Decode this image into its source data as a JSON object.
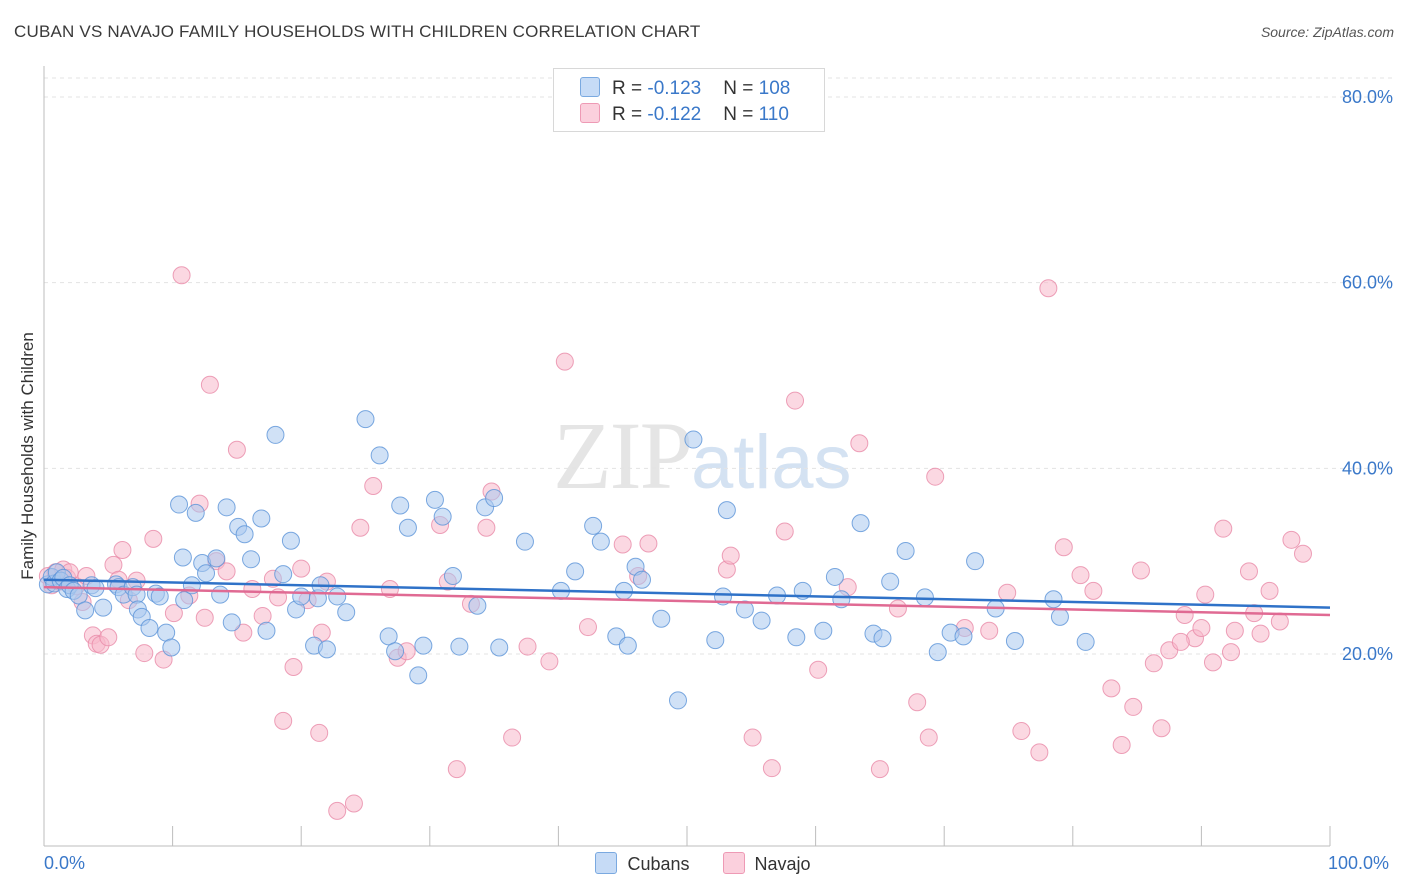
{
  "header": {
    "title": "CUBAN VS NAVAJO FAMILY HOUSEHOLDS WITH CHILDREN CORRELATION CHART",
    "source": "Source: ZipAtlas.com"
  },
  "watermark": {
    "zip": "ZIP",
    "atlas": "atlas"
  },
  "legend": {
    "rows": [
      {
        "r_label": "R = ",
        "r_value": "-0.123",
        "n_label": "N = ",
        "n_value": "108",
        "color": "#a9c8ef"
      },
      {
        "r_label": "R = ",
        "r_value": "-0.122",
        "n_label": "N = ",
        "n_value": "110",
        "color": "#f7b8cb"
      }
    ]
  },
  "bottom_legend": {
    "cubans": "Cubans",
    "navajo": "Navajo"
  },
  "axes": {
    "x_min_label": "0.0%",
    "x_max_label": "100.0%"
  },
  "chart_data": {
    "type": "scatter",
    "title": "CUBAN VS NAVAJO FAMILY HOUSEHOLDS WITH CHILDREN CORRELATION CHART",
    "xlabel": "",
    "ylabel": "Family Households with Children",
    "xlim": [
      0,
      100
    ],
    "ylim": [
      0,
      84
    ],
    "y_ticks": [
      20,
      40,
      60,
      80
    ],
    "y_tick_labels": [
      "20.0%",
      "40.0%",
      "60.0%",
      "80.0%"
    ],
    "grid": true,
    "legend_placement": "top-center",
    "colors": {
      "cubans_fill": "#a9c8ef",
      "cubans_stroke": "#5b93d8",
      "cubans_line": "#2f72c8",
      "navajo_fill": "#f7b8cb",
      "navajo_stroke": "#e88aa8",
      "navajo_line": "#e06a93"
    },
    "series": [
      {
        "name": "Cubans",
        "trend": [
          [
            0,
            28.0
          ],
          [
            100,
            25.0
          ]
        ],
        "points": [
          [
            0.3,
            27.5
          ],
          [
            0.6,
            28.3
          ],
          [
            0.8,
            27.6
          ],
          [
            1.0,
            28.8
          ],
          [
            1.3,
            27.9
          ],
          [
            1.5,
            28.2
          ],
          [
            1.8,
            27.0
          ],
          [
            2.0,
            27.4
          ],
          [
            2.3,
            26.8
          ],
          [
            2.7,
            26.3
          ],
          [
            3.2,
            24.7
          ],
          [
            3.7,
            27.4
          ],
          [
            4.0,
            27.1
          ],
          [
            4.6,
            25.0
          ],
          [
            5.6,
            27.5
          ],
          [
            5.8,
            27.2
          ],
          [
            6.2,
            26.4
          ],
          [
            6.9,
            27.2
          ],
          [
            7.2,
            26.4
          ],
          [
            7.3,
            24.8
          ],
          [
            7.6,
            24.0
          ],
          [
            8.2,
            22.8
          ],
          [
            8.7,
            26.5
          ],
          [
            9.0,
            26.2
          ],
          [
            9.5,
            22.3
          ],
          [
            9.9,
            20.7
          ],
          [
            10.5,
            36.1
          ],
          [
            10.8,
            30.4
          ],
          [
            10.9,
            25.8
          ],
          [
            11.5,
            27.4
          ],
          [
            11.8,
            35.2
          ],
          [
            12.3,
            29.8
          ],
          [
            12.6,
            28.7
          ],
          [
            13.4,
            30.3
          ],
          [
            13.7,
            26.4
          ],
          [
            14.2,
            35.8
          ],
          [
            14.6,
            23.4
          ],
          [
            15.1,
            33.7
          ],
          [
            15.6,
            32.9
          ],
          [
            16.1,
            30.2
          ],
          [
            16.9,
            34.6
          ],
          [
            17.3,
            22.5
          ],
          [
            18.0,
            43.6
          ],
          [
            18.6,
            28.6
          ],
          [
            19.2,
            32.2
          ],
          [
            19.6,
            24.8
          ],
          [
            20.0,
            26.2
          ],
          [
            21.0,
            20.9
          ],
          [
            21.3,
            26.0
          ],
          [
            21.5,
            27.4
          ],
          [
            22.0,
            20.5
          ],
          [
            22.8,
            26.2
          ],
          [
            23.5,
            24.5
          ],
          [
            25.0,
            45.3
          ],
          [
            26.1,
            41.4
          ],
          [
            26.8,
            21.9
          ],
          [
            27.3,
            20.3
          ],
          [
            27.7,
            36.0
          ],
          [
            28.3,
            33.6
          ],
          [
            29.1,
            17.7
          ],
          [
            29.5,
            20.9
          ],
          [
            30.4,
            36.6
          ],
          [
            31.0,
            34.8
          ],
          [
            31.8,
            28.4
          ],
          [
            32.3,
            20.8
          ],
          [
            33.7,
            25.2
          ],
          [
            34.3,
            35.8
          ],
          [
            35.0,
            36.8
          ],
          [
            35.4,
            20.7
          ],
          [
            37.4,
            32.1
          ],
          [
            40.2,
            26.8
          ],
          [
            41.3,
            28.9
          ],
          [
            42.7,
            33.8
          ],
          [
            43.3,
            32.1
          ],
          [
            44.5,
            21.9
          ],
          [
            45.1,
            26.8
          ],
          [
            45.4,
            20.9
          ],
          [
            46.0,
            29.4
          ],
          [
            46.5,
            28.0
          ],
          [
            48.0,
            23.8
          ],
          [
            49.3,
            15.0
          ],
          [
            50.5,
            43.1
          ],
          [
            52.2,
            21.5
          ],
          [
            52.8,
            26.2
          ],
          [
            53.1,
            35.5
          ],
          [
            54.5,
            24.8
          ],
          [
            55.8,
            23.6
          ],
          [
            57.0,
            26.3
          ],
          [
            58.5,
            21.8
          ],
          [
            59.0,
            26.8
          ],
          [
            60.6,
            22.5
          ],
          [
            61.5,
            28.3
          ],
          [
            62.0,
            25.9
          ],
          [
            63.5,
            34.1
          ],
          [
            64.5,
            22.2
          ],
          [
            65.2,
            21.7
          ],
          [
            65.8,
            27.8
          ],
          [
            67.0,
            31.1
          ],
          [
            68.5,
            26.1
          ],
          [
            69.5,
            20.2
          ],
          [
            70.5,
            22.3
          ],
          [
            71.5,
            21.9
          ],
          [
            72.4,
            30.0
          ],
          [
            74.0,
            24.9
          ],
          [
            75.5,
            21.4
          ],
          [
            78.5,
            25.9
          ],
          [
            79.0,
            24.0
          ],
          [
            81.0,
            21.3
          ]
        ]
      },
      {
        "name": "Navajo",
        "trend": [
          [
            0,
            27.2
          ],
          [
            100,
            24.2
          ]
        ],
        "points": [
          [
            0.3,
            28.4
          ],
          [
            0.6,
            27.4
          ],
          [
            0.9,
            28.8
          ],
          [
            1.2,
            27.8
          ],
          [
            1.5,
            29.1
          ],
          [
            1.8,
            28.2
          ],
          [
            2.0,
            28.8
          ],
          [
            2.5,
            27.3
          ],
          [
            3.0,
            25.6
          ],
          [
            3.3,
            28.4
          ],
          [
            3.8,
            22.0
          ],
          [
            4.1,
            21.1
          ],
          [
            4.4,
            21.0
          ],
          [
            5.0,
            21.8
          ],
          [
            5.4,
            29.6
          ],
          [
            5.8,
            28.0
          ],
          [
            6.1,
            31.2
          ],
          [
            6.6,
            25.8
          ],
          [
            7.2,
            27.9
          ],
          [
            7.8,
            20.1
          ],
          [
            8.5,
            32.4
          ],
          [
            9.3,
            19.4
          ],
          [
            10.1,
            24.4
          ],
          [
            10.7,
            60.8
          ],
          [
            11.3,
            26.3
          ],
          [
            12.1,
            36.2
          ],
          [
            12.5,
            23.9
          ],
          [
            12.9,
            49.0
          ],
          [
            13.4,
            30.0
          ],
          [
            14.2,
            28.9
          ],
          [
            15.0,
            42.0
          ],
          [
            15.5,
            22.3
          ],
          [
            16.2,
            27.0
          ],
          [
            17.0,
            24.1
          ],
          [
            17.8,
            28.1
          ],
          [
            18.2,
            26.1
          ],
          [
            18.6,
            12.8
          ],
          [
            19.4,
            18.6
          ],
          [
            20.0,
            29.2
          ],
          [
            20.5,
            25.8
          ],
          [
            21.4,
            11.5
          ],
          [
            21.6,
            22.3
          ],
          [
            22.0,
            27.8
          ],
          [
            22.8,
            3.1
          ],
          [
            24.1,
            3.9
          ],
          [
            24.6,
            33.6
          ],
          [
            25.6,
            38.1
          ],
          [
            26.9,
            27.0
          ],
          [
            27.5,
            19.6
          ],
          [
            28.2,
            20.3
          ],
          [
            30.8,
            33.9
          ],
          [
            31.4,
            27.8
          ],
          [
            32.1,
            7.6
          ],
          [
            33.2,
            25.4
          ],
          [
            34.4,
            33.6
          ],
          [
            34.8,
            37.5
          ],
          [
            36.4,
            11.0
          ],
          [
            37.6,
            20.8
          ],
          [
            39.3,
            19.2
          ],
          [
            40.5,
            51.5
          ],
          [
            42.3,
            22.9
          ],
          [
            45.0,
            31.8
          ],
          [
            46.2,
            28.4
          ],
          [
            47.0,
            31.9
          ],
          [
            53.1,
            29.1
          ],
          [
            53.4,
            30.6
          ],
          [
            55.1,
            11.0
          ],
          [
            56.6,
            7.7
          ],
          [
            57.6,
            33.2
          ],
          [
            58.4,
            47.3
          ],
          [
            60.2,
            18.3
          ],
          [
            62.5,
            27.2
          ],
          [
            63.4,
            42.7
          ],
          [
            65.0,
            7.6
          ],
          [
            66.4,
            24.9
          ],
          [
            67.9,
            14.8
          ],
          [
            68.8,
            11.0
          ],
          [
            69.3,
            39.1
          ],
          [
            71.6,
            22.8
          ],
          [
            73.5,
            22.5
          ],
          [
            74.9,
            26.6
          ],
          [
            76.0,
            11.7
          ],
          [
            77.4,
            9.4
          ],
          [
            78.1,
            59.4
          ],
          [
            79.3,
            31.5
          ],
          [
            80.6,
            28.5
          ],
          [
            81.6,
            26.8
          ],
          [
            83.0,
            16.3
          ],
          [
            83.8,
            10.2
          ],
          [
            84.7,
            14.3
          ],
          [
            85.3,
            29.0
          ],
          [
            86.3,
            19.0
          ],
          [
            86.9,
            12.0
          ],
          [
            87.5,
            20.4
          ],
          [
            88.7,
            24.2
          ],
          [
            89.5,
            21.7
          ],
          [
            90.3,
            26.4
          ],
          [
            90.9,
            19.1
          ],
          [
            91.7,
            33.5
          ],
          [
            92.6,
            22.5
          ],
          [
            93.7,
            28.9
          ],
          [
            94.1,
            24.4
          ],
          [
            94.6,
            22.2
          ],
          [
            95.3,
            26.8
          ],
          [
            96.1,
            23.5
          ],
          [
            97.0,
            32.3
          ],
          [
            97.9,
            30.8
          ],
          [
            88.4,
            21.3
          ],
          [
            90.0,
            22.8
          ],
          [
            92.3,
            20.2
          ]
        ]
      }
    ]
  }
}
